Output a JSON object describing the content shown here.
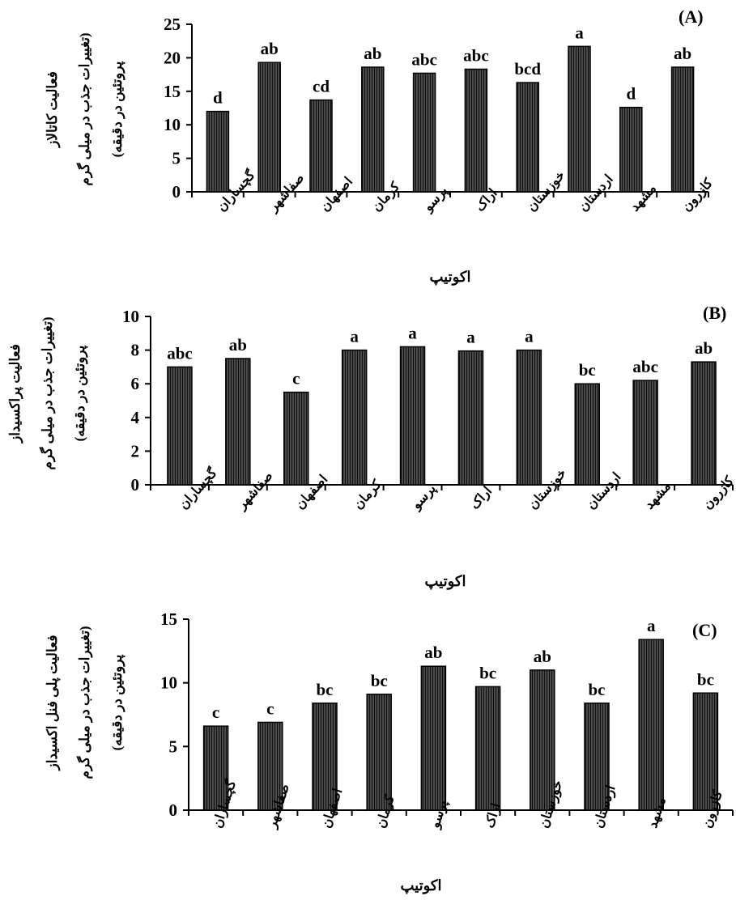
{
  "chart_data": [
    {
      "type": "bar",
      "panel_label": "(A)",
      "ylabel": "فعالیت کاتالاز",
      "ylabel_line2": "(تغییرات جذب در میلی گرم",
      "ylabel_line3": "پروتئین در دقیقه)",
      "xlabel": "اکوتیپ",
      "ylim": [
        0,
        25
      ],
      "yticks": [
        "0",
        "5",
        "10",
        "15",
        "20",
        "25"
      ],
      "categories": [
        "گچساران",
        "صفاشهر",
        "اصفهان",
        "کرمان",
        "پرسو",
        "اراک",
        "خوزستان",
        "اردستان",
        "مشهد",
        "کازرون"
      ],
      "values": [
        12.0,
        19.3,
        13.7,
        18.6,
        17.7,
        18.3,
        16.3,
        21.7,
        12.6,
        18.6
      ],
      "significance": [
        "d",
        "ab",
        "cd",
        "ab",
        "abc",
        "abc",
        "bcd",
        "a",
        "d",
        "ab"
      ]
    },
    {
      "type": "bar",
      "panel_label": "(B)",
      "ylabel": "فعالیت پراکسیداز",
      "ylabel_line2": "(تغییرات جذب در میلی گرم",
      "ylabel_line3": "پروتئین در دقیقه)",
      "xlabel": "اکوتیپ",
      "ylim": [
        0,
        10
      ],
      "yticks": [
        "0",
        "2",
        "4",
        "6",
        "8",
        "10"
      ],
      "categories": [
        "گچساران",
        "صفاشهر",
        "اصفهان",
        "کرمان",
        "پرسو",
        "اراک",
        "خوزستان",
        "اردستان",
        "مشهد",
        "کازرون"
      ],
      "values": [
        7.0,
        7.5,
        5.5,
        8.0,
        8.2,
        7.95,
        8.0,
        6.0,
        6.2,
        7.3
      ],
      "significance": [
        "abc",
        "ab",
        "c",
        "a",
        "a",
        "a",
        "a",
        "bc",
        "abc",
        "ab"
      ]
    },
    {
      "type": "bar",
      "panel_label": "(C)",
      "ylabel": "فعالیت پلی فنل اکسیداز",
      "ylabel_line2": "(تغییرات جذب در میلی گرم",
      "ylabel_line3": "پروتئین در دقیقه)",
      "xlabel": "اکوتیپ",
      "ylim": [
        0,
        15
      ],
      "yticks": [
        "0",
        "5",
        "10",
        "15"
      ],
      "categories": [
        "گچساران",
        "صفاشهر",
        "اصفهان",
        "کرمان",
        "پرسو",
        "اراک",
        "خوزستان",
        "اردستان",
        "مشهد",
        "کازرون"
      ],
      "values": [
        6.6,
        6.9,
        8.4,
        9.1,
        11.3,
        9.7,
        11.0,
        8.4,
        13.4,
        9.2
      ],
      "significance": [
        "c",
        "c",
        "bc",
        "bc",
        "ab",
        "bc",
        "ab",
        "bc",
        "a",
        "bc"
      ]
    }
  ]
}
